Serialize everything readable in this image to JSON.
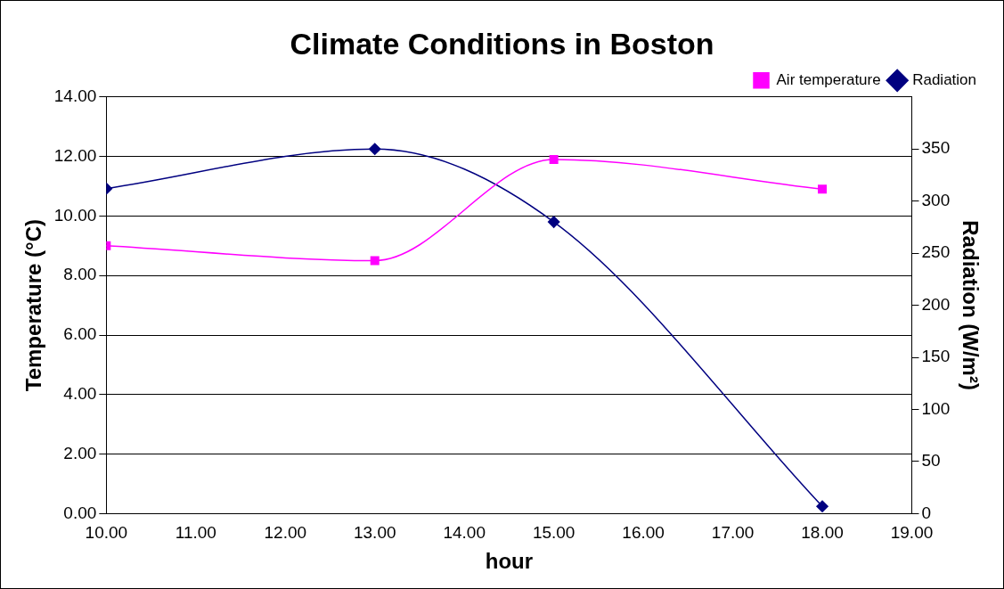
{
  "chart_data": {
    "type": "line",
    "title": "Climate Conditions in Boston",
    "xlabel": "hour",
    "ylabel": "Temperature (°C)",
    "y2label": "Radiation (W/m²)",
    "x": [
      10,
      13,
      15,
      18
    ],
    "series": [
      {
        "name": "Air temperature",
        "color": "#ff00ff",
        "marker": "square",
        "values": [
          9.0,
          8.5,
          11.9,
          10.9
        ]
      },
      {
        "name": "Radiation",
        "color": "#000080",
        "marker": "diamond",
        "axis": "y2",
        "values": [
          312,
          350,
          280,
          7
        ]
      }
    ],
    "xlim": [
      10,
      19
    ],
    "xticks": [
      {
        "value": 10,
        "label": "10.00"
      },
      {
        "value": 11,
        "label": "11.00"
      },
      {
        "value": 12,
        "label": "12.00"
      },
      {
        "value": 13,
        "label": "13.00"
      },
      {
        "value": 14,
        "label": "14.00"
      },
      {
        "value": 15,
        "label": "15.00"
      },
      {
        "value": 16,
        "label": "16.00"
      },
      {
        "value": 17,
        "label": "17.00"
      },
      {
        "value": 18,
        "label": "18.00"
      },
      {
        "value": 19,
        "label": "19.00"
      }
    ],
    "ylim": [
      0,
      14
    ],
    "yticks": [
      {
        "value": 0,
        "label": "0.00"
      },
      {
        "value": 2,
        "label": "2.00"
      },
      {
        "value": 4,
        "label": "4.00"
      },
      {
        "value": 6,
        "label": "6.00"
      },
      {
        "value": 8,
        "label": "8.00"
      },
      {
        "value": 10,
        "label": "10.00"
      },
      {
        "value": 12,
        "label": "12.00"
      },
      {
        "value": 14,
        "label": "14.00"
      }
    ],
    "y2lim": [
      0,
      400
    ],
    "y2ticks": [
      0,
      50,
      100,
      150,
      200,
      250,
      300,
      350
    ],
    "grid": "y",
    "legend": "top right"
  }
}
